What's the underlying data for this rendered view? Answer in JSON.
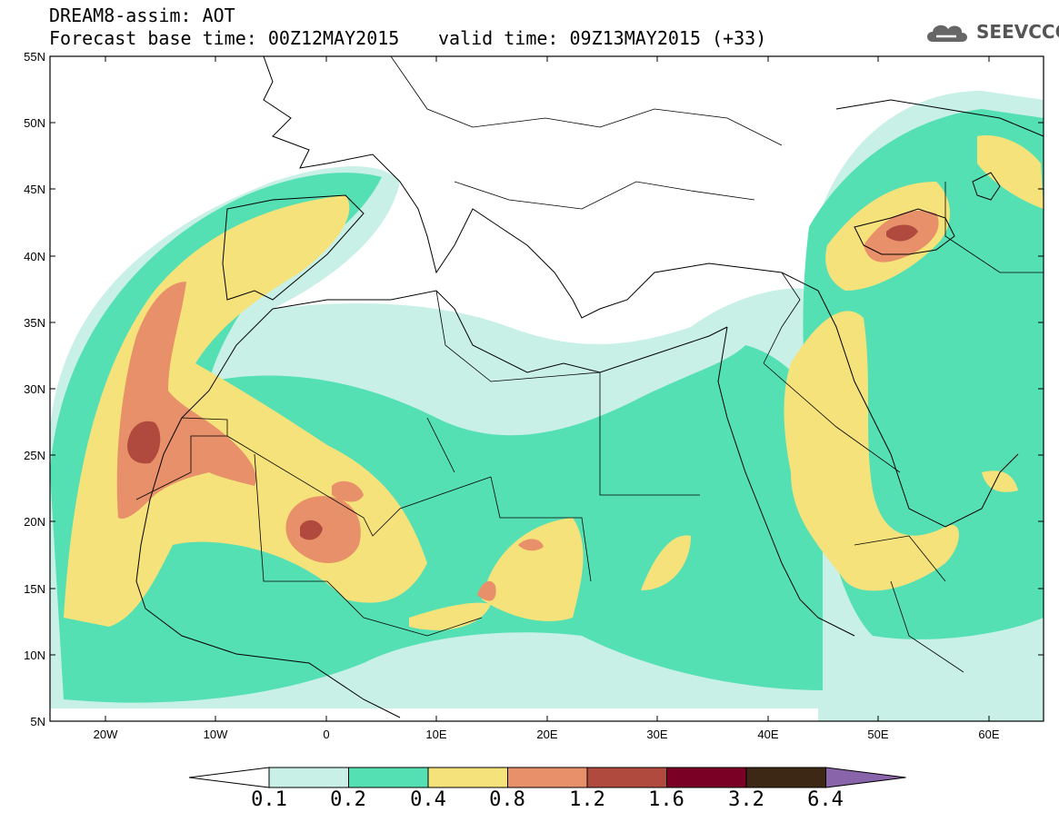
{
  "header": {
    "model_line": "DREAM8-assim: AOT",
    "base_time_line": "Forecast base time: 00Z12MAY2015",
    "valid_time_line": "valid time: 09Z13MAY2015 (+33)",
    "logo_text": "SEEVCCC"
  },
  "map": {
    "lat_labels": [
      "55N",
      "50N",
      "45N",
      "40N",
      "35N",
      "30N",
      "25N",
      "20N",
      "15N",
      "10N",
      "5N"
    ],
    "lon_labels": [
      "20W",
      "10W",
      "0",
      "10E",
      "20E",
      "30E",
      "40E",
      "50E",
      "60E"
    ],
    "lon_range": [
      -25,
      65
    ],
    "lat_range": [
      5,
      55
    ]
  },
  "colorbar": {
    "labels": [
      "0.1",
      "0.2",
      "0.4",
      "0.8",
      "1.2",
      "1.6",
      "3.2",
      "6.4"
    ],
    "colors": [
      "#ffffff",
      "#c8f0e6",
      "#55e0b4",
      "#f5e27a",
      "#e8906a",
      "#b04a3e",
      "#7a0026",
      "#3c2814",
      "#8a64aa"
    ]
  }
}
